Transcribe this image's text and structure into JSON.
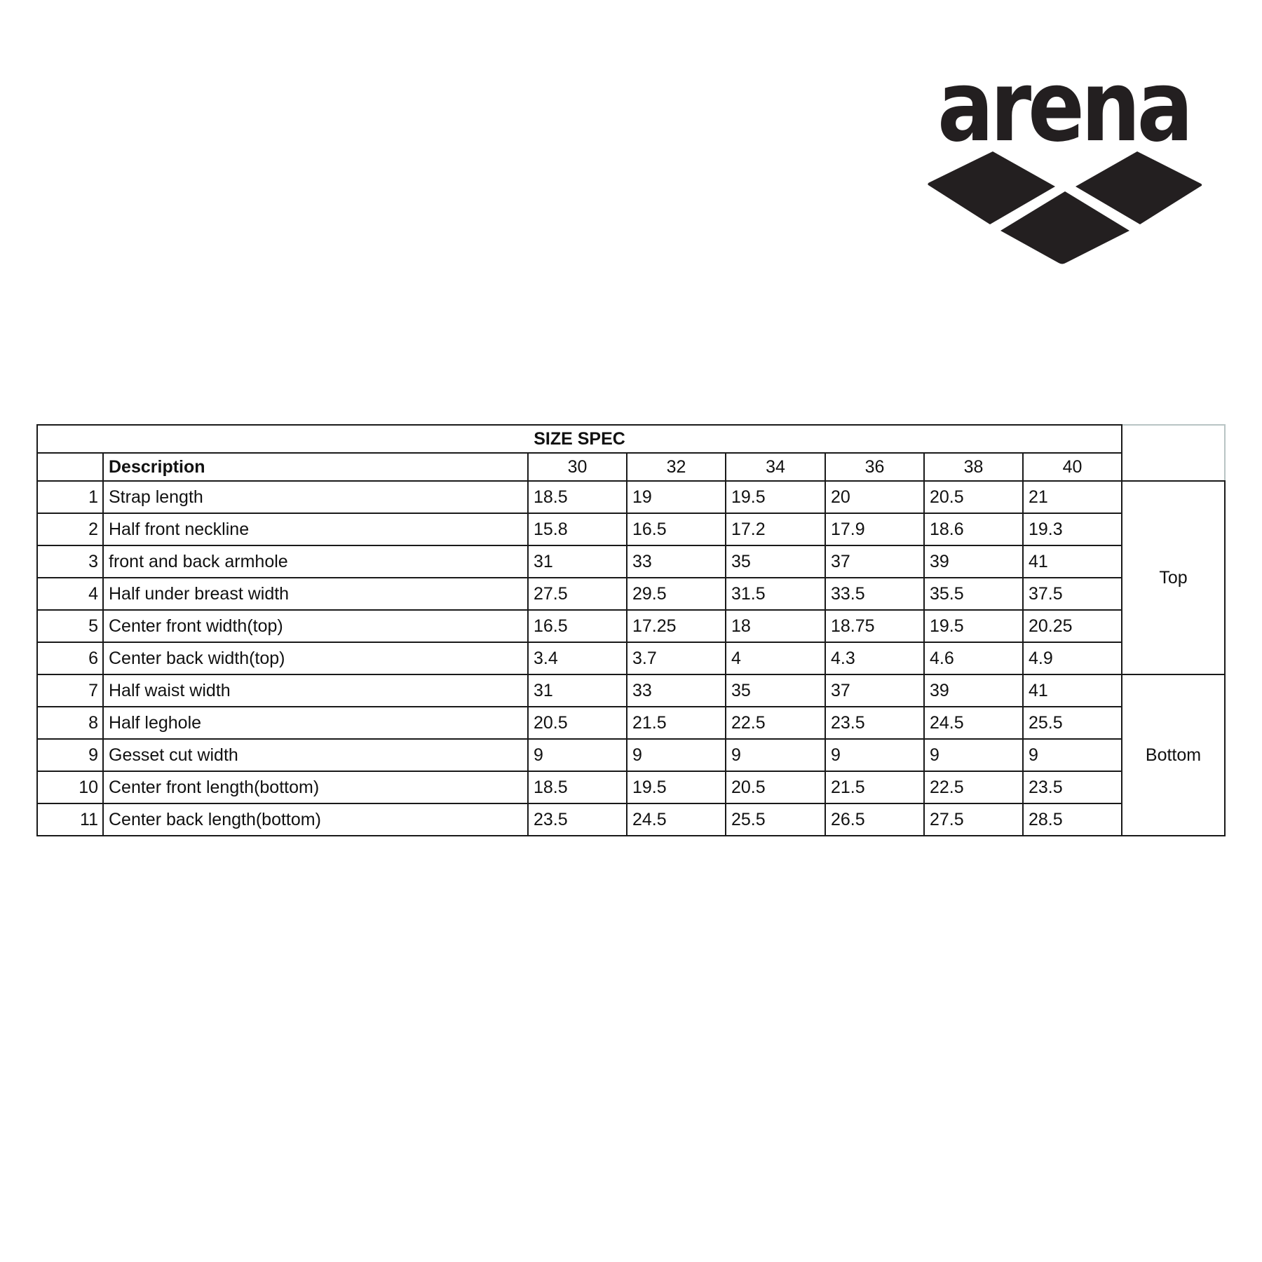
{
  "logo": {
    "brand": "arena",
    "color": "#231f20"
  },
  "table": {
    "title": "SIZE SPEC",
    "description_header": "Description",
    "sizes": [
      "30",
      "32",
      "34",
      "36",
      "38",
      "40"
    ],
    "rows": [
      {
        "no": "1",
        "description": "Strap length",
        "values": [
          "18.5",
          "19",
          "19.5",
          "20",
          "20.5",
          "21"
        ]
      },
      {
        "no": "2",
        "description": "Half front neckline",
        "values": [
          "15.8",
          "16.5",
          "17.2",
          "17.9",
          "18.6",
          "19.3"
        ]
      },
      {
        "no": "3",
        "description": "front and back armhole",
        "values": [
          "31",
          "33",
          "35",
          "37",
          "39",
          "41"
        ]
      },
      {
        "no": "4",
        "description": "Half under breast width",
        "values": [
          "27.5",
          "29.5",
          "31.5",
          "33.5",
          "35.5",
          "37.5"
        ]
      },
      {
        "no": "5",
        "description": "Center front width(top)",
        "values": [
          "16.5",
          "17.25",
          "18",
          "18.75",
          "19.5",
          "20.25"
        ]
      },
      {
        "no": "6",
        "description": "Center back width(top)",
        "values": [
          "3.4",
          "3.7",
          "4",
          "4.3",
          "4.6",
          "4.9"
        ]
      },
      {
        "no": "7",
        "description": "Half waist width",
        "values": [
          "31",
          "33",
          "35",
          "37",
          "39",
          "41"
        ]
      },
      {
        "no": "8",
        "description": "Half leghole",
        "values": [
          "20.5",
          "21.5",
          "22.5",
          "23.5",
          "24.5",
          "25.5"
        ]
      },
      {
        "no": "9",
        "description": "Gesset cut width",
        "values": [
          "9",
          "9",
          "9",
          "9",
          "9",
          "9"
        ]
      },
      {
        "no": "10",
        "description": "Center front length(bottom)",
        "values": [
          "18.5",
          "19.5",
          "20.5",
          "21.5",
          "22.5",
          "23.5"
        ]
      },
      {
        "no": "11",
        "description": "Center back length(bottom)",
        "values": [
          "23.5",
          "24.5",
          "25.5",
          "26.5",
          "27.5",
          "28.5"
        ]
      }
    ],
    "groups": [
      {
        "label": "Top",
        "rows": 6
      },
      {
        "label": "Bottom",
        "rows": 5
      }
    ]
  }
}
